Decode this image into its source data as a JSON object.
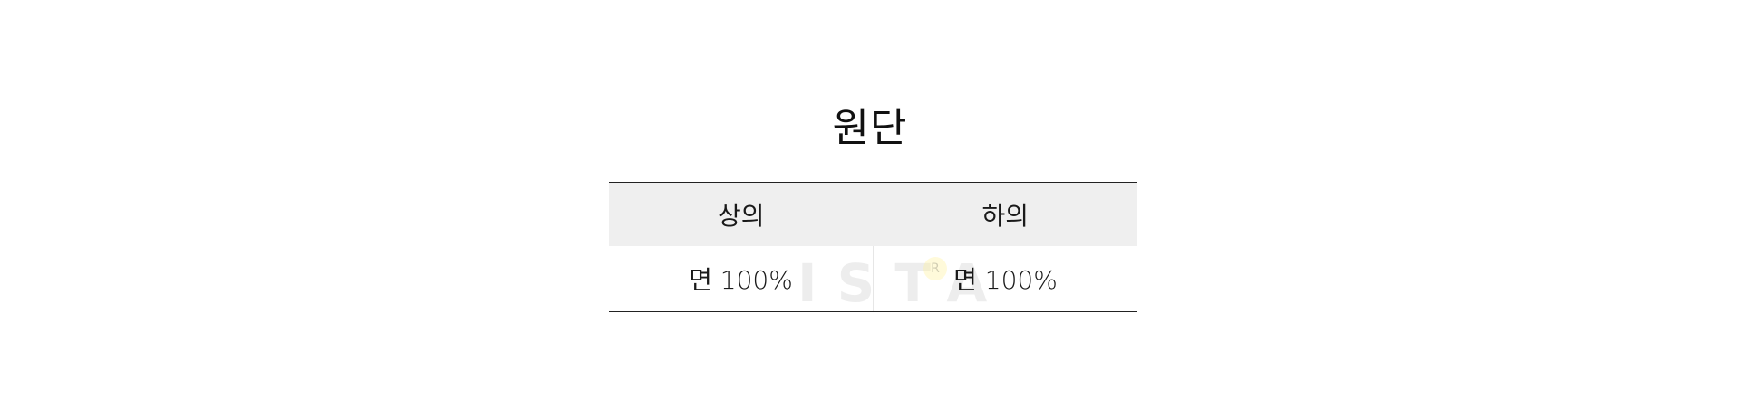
{
  "section": {
    "title": "원단"
  },
  "table": {
    "headers": [
      "상의",
      "하의"
    ],
    "rows": [
      [
        "면 100%",
        "면 100%"
      ]
    ]
  },
  "watermark": {
    "text": "ISTA",
    "mark": "R"
  }
}
